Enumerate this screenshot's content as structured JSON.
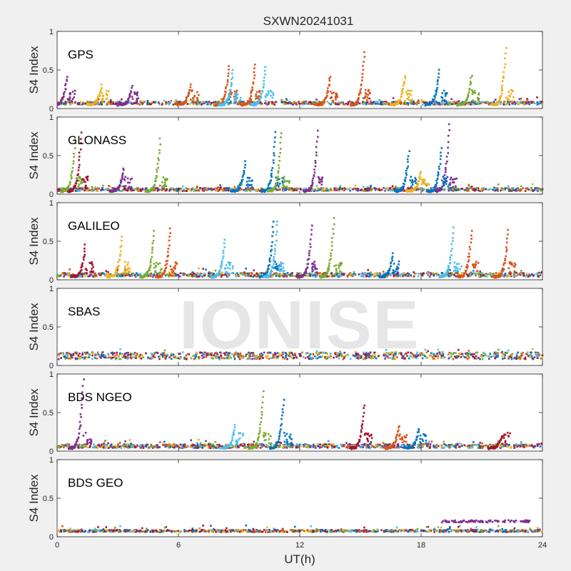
{
  "chart_data": {
    "type": "scatter",
    "title": "SXWN20241031",
    "xlabel": "UT(h)",
    "ylabel": "S4 Index",
    "xlim": [
      0,
      24
    ],
    "ylim": [
      0,
      1
    ],
    "xticks": [
      0,
      6,
      12,
      18,
      24
    ],
    "yticks": [
      0,
      0.5,
      1
    ],
    "ytick_labels": [
      "0",
      "0.5",
      "1"
    ],
    "grid": false,
    "watermark": "IONISE",
    "colors": [
      "#0072bd",
      "#d95319",
      "#edb120",
      "#7e2f8e",
      "#77ac30",
      "#4dbeee",
      "#a2142f"
    ],
    "panels": [
      {
        "label": "GPS",
        "baseline": [
          0.05,
          0.09
        ],
        "spikes": [
          {
            "x": 0.5,
            "peak": 0.42,
            "c": 3
          },
          {
            "x": 2.2,
            "peak": 0.3,
            "c": 2
          },
          {
            "x": 3.7,
            "peak": 0.28,
            "c": 3
          },
          {
            "x": 6.6,
            "peak": 0.3,
            "c": 1
          },
          {
            "x": 8.5,
            "peak": 0.56,
            "c": 1
          },
          {
            "x": 8.7,
            "peak": 0.5,
            "c": 5
          },
          {
            "x": 9.8,
            "peak": 0.57,
            "c": 1
          },
          {
            "x": 10.3,
            "peak": 0.53,
            "c": 5
          },
          {
            "x": 13.5,
            "peak": 0.42,
            "c": 1
          },
          {
            "x": 15.2,
            "peak": 0.73,
            "c": 1
          },
          {
            "x": 17.2,
            "peak": 0.43,
            "c": 2
          },
          {
            "x": 18.9,
            "peak": 0.5,
            "c": 0
          },
          {
            "x": 20.5,
            "peak": 0.43,
            "c": 4
          },
          {
            "x": 22.2,
            "peak": 0.78,
            "c": 2
          }
        ]
      },
      {
        "label": "GLONASS",
        "baseline": [
          0.04,
          0.08
        ],
        "spikes": [
          {
            "x": 1.2,
            "peak": 0.8,
            "c": 6
          },
          {
            "x": 0.9,
            "peak": 0.72,
            "c": 4
          },
          {
            "x": 3.3,
            "peak": 0.33,
            "c": 3
          },
          {
            "x": 5.1,
            "peak": 0.71,
            "c": 4
          },
          {
            "x": 9.3,
            "peak": 0.42,
            "c": 0
          },
          {
            "x": 10.8,
            "peak": 0.82,
            "c": 0
          },
          {
            "x": 11.1,
            "peak": 0.8,
            "c": 4
          },
          {
            "x": 12.9,
            "peak": 0.82,
            "c": 3
          },
          {
            "x": 17.4,
            "peak": 0.55,
            "c": 0
          },
          {
            "x": 18.0,
            "peak": 0.3,
            "c": 2
          },
          {
            "x": 19.4,
            "peak": 0.92,
            "c": 3
          },
          {
            "x": 19.0,
            "peak": 0.6,
            "c": 0
          }
        ]
      },
      {
        "label": "GALILEO",
        "baseline": [
          0.04,
          0.09
        ],
        "spikes": [
          {
            "x": 1.4,
            "peak": 0.45,
            "c": 6
          },
          {
            "x": 3.2,
            "peak": 0.55,
            "c": 2
          },
          {
            "x": 4.8,
            "peak": 0.63,
            "c": 4
          },
          {
            "x": 5.6,
            "peak": 0.67,
            "c": 1
          },
          {
            "x": 8.3,
            "peak": 0.52,
            "c": 5
          },
          {
            "x": 10.7,
            "peak": 0.75,
            "c": 0
          },
          {
            "x": 10.9,
            "peak": 0.77,
            "c": 5
          },
          {
            "x": 12.6,
            "peak": 0.71,
            "c": 3
          },
          {
            "x": 13.7,
            "peak": 0.8,
            "c": 4
          },
          {
            "x": 16.6,
            "peak": 0.33,
            "c": 0
          },
          {
            "x": 19.6,
            "peak": 0.67,
            "c": 5
          },
          {
            "x": 20.5,
            "peak": 0.65,
            "c": 1
          },
          {
            "x": 22.3,
            "peak": 0.65,
            "c": 1
          }
        ]
      },
      {
        "label": "SBAS",
        "baseline": [
          0.08,
          0.17
        ],
        "spikes": []
      },
      {
        "label": "BDS NGEO",
        "baseline": [
          0.04,
          0.09
        ],
        "spikes": [
          {
            "x": 1.3,
            "peak": 0.92,
            "c": 3
          },
          {
            "x": 8.8,
            "peak": 0.33,
            "c": 5
          },
          {
            "x": 10.2,
            "peak": 0.78,
            "c": 4
          },
          {
            "x": 11.2,
            "peak": 0.67,
            "c": 0
          },
          {
            "x": 15.2,
            "peak": 0.6,
            "c": 6
          },
          {
            "x": 16.9,
            "peak": 0.32,
            "c": 1
          },
          {
            "x": 17.9,
            "peak": 0.3,
            "c": 0
          },
          {
            "x": 22.0,
            "peak": 0.2,
            "c": 6
          }
        ]
      },
      {
        "label": "BDS GEO",
        "baseline": [
          0.06,
          0.09
        ],
        "spikes": [],
        "extra_segment": {
          "x_from": 19.0,
          "x_to": 23.4,
          "y": 0.2,
          "c": 3
        }
      }
    ]
  }
}
